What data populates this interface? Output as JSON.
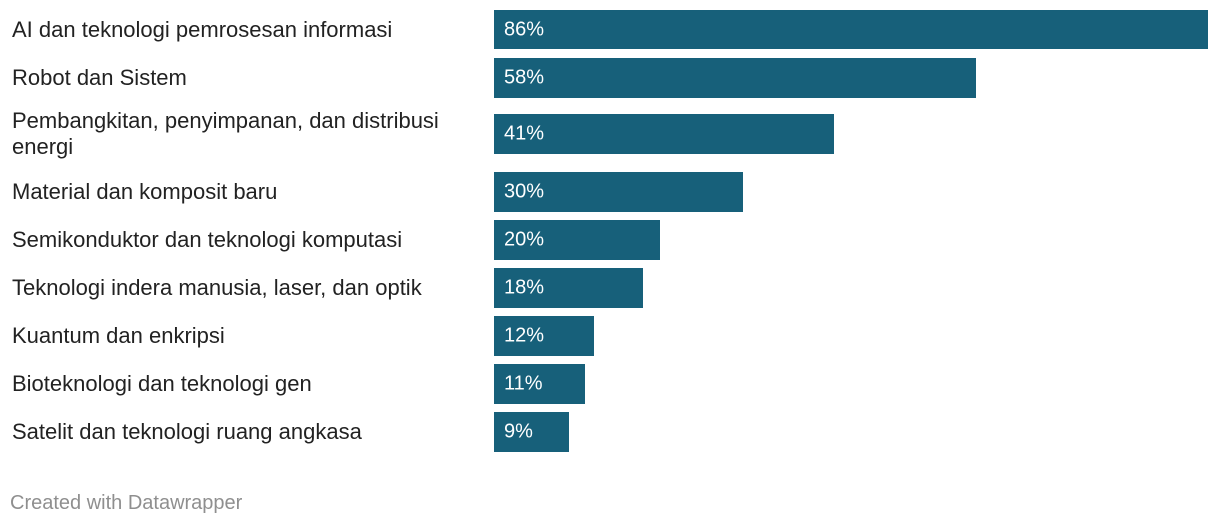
{
  "chart_data": {
    "type": "bar",
    "orientation": "horizontal",
    "categories": [
      "AI dan teknologi pemrosesan informasi",
      "Robot dan Sistem",
      "Pembangkitan, penyimpanan, dan distribusi energi",
      "Material dan komposit baru",
      "Semikonduktor dan teknologi komputasi",
      "Teknologi indera manusia, laser, dan optik",
      "Kuantum dan enkripsi",
      "Bioteknologi dan teknologi gen",
      "Satelit dan teknologi ruang angkasa"
    ],
    "values": [
      86,
      58,
      41,
      30,
      20,
      18,
      12,
      11,
      9
    ],
    "value_labels": [
      "86%",
      "58%",
      "41%",
      "30%",
      "20%",
      "18%",
      "12%",
      "11%",
      "9%"
    ],
    "xlim": [
      0,
      86
    ],
    "bar_color": "#17607a",
    "grid": false,
    "legend": "none"
  },
  "footer": {
    "credit": "Created with Datawrapper"
  }
}
